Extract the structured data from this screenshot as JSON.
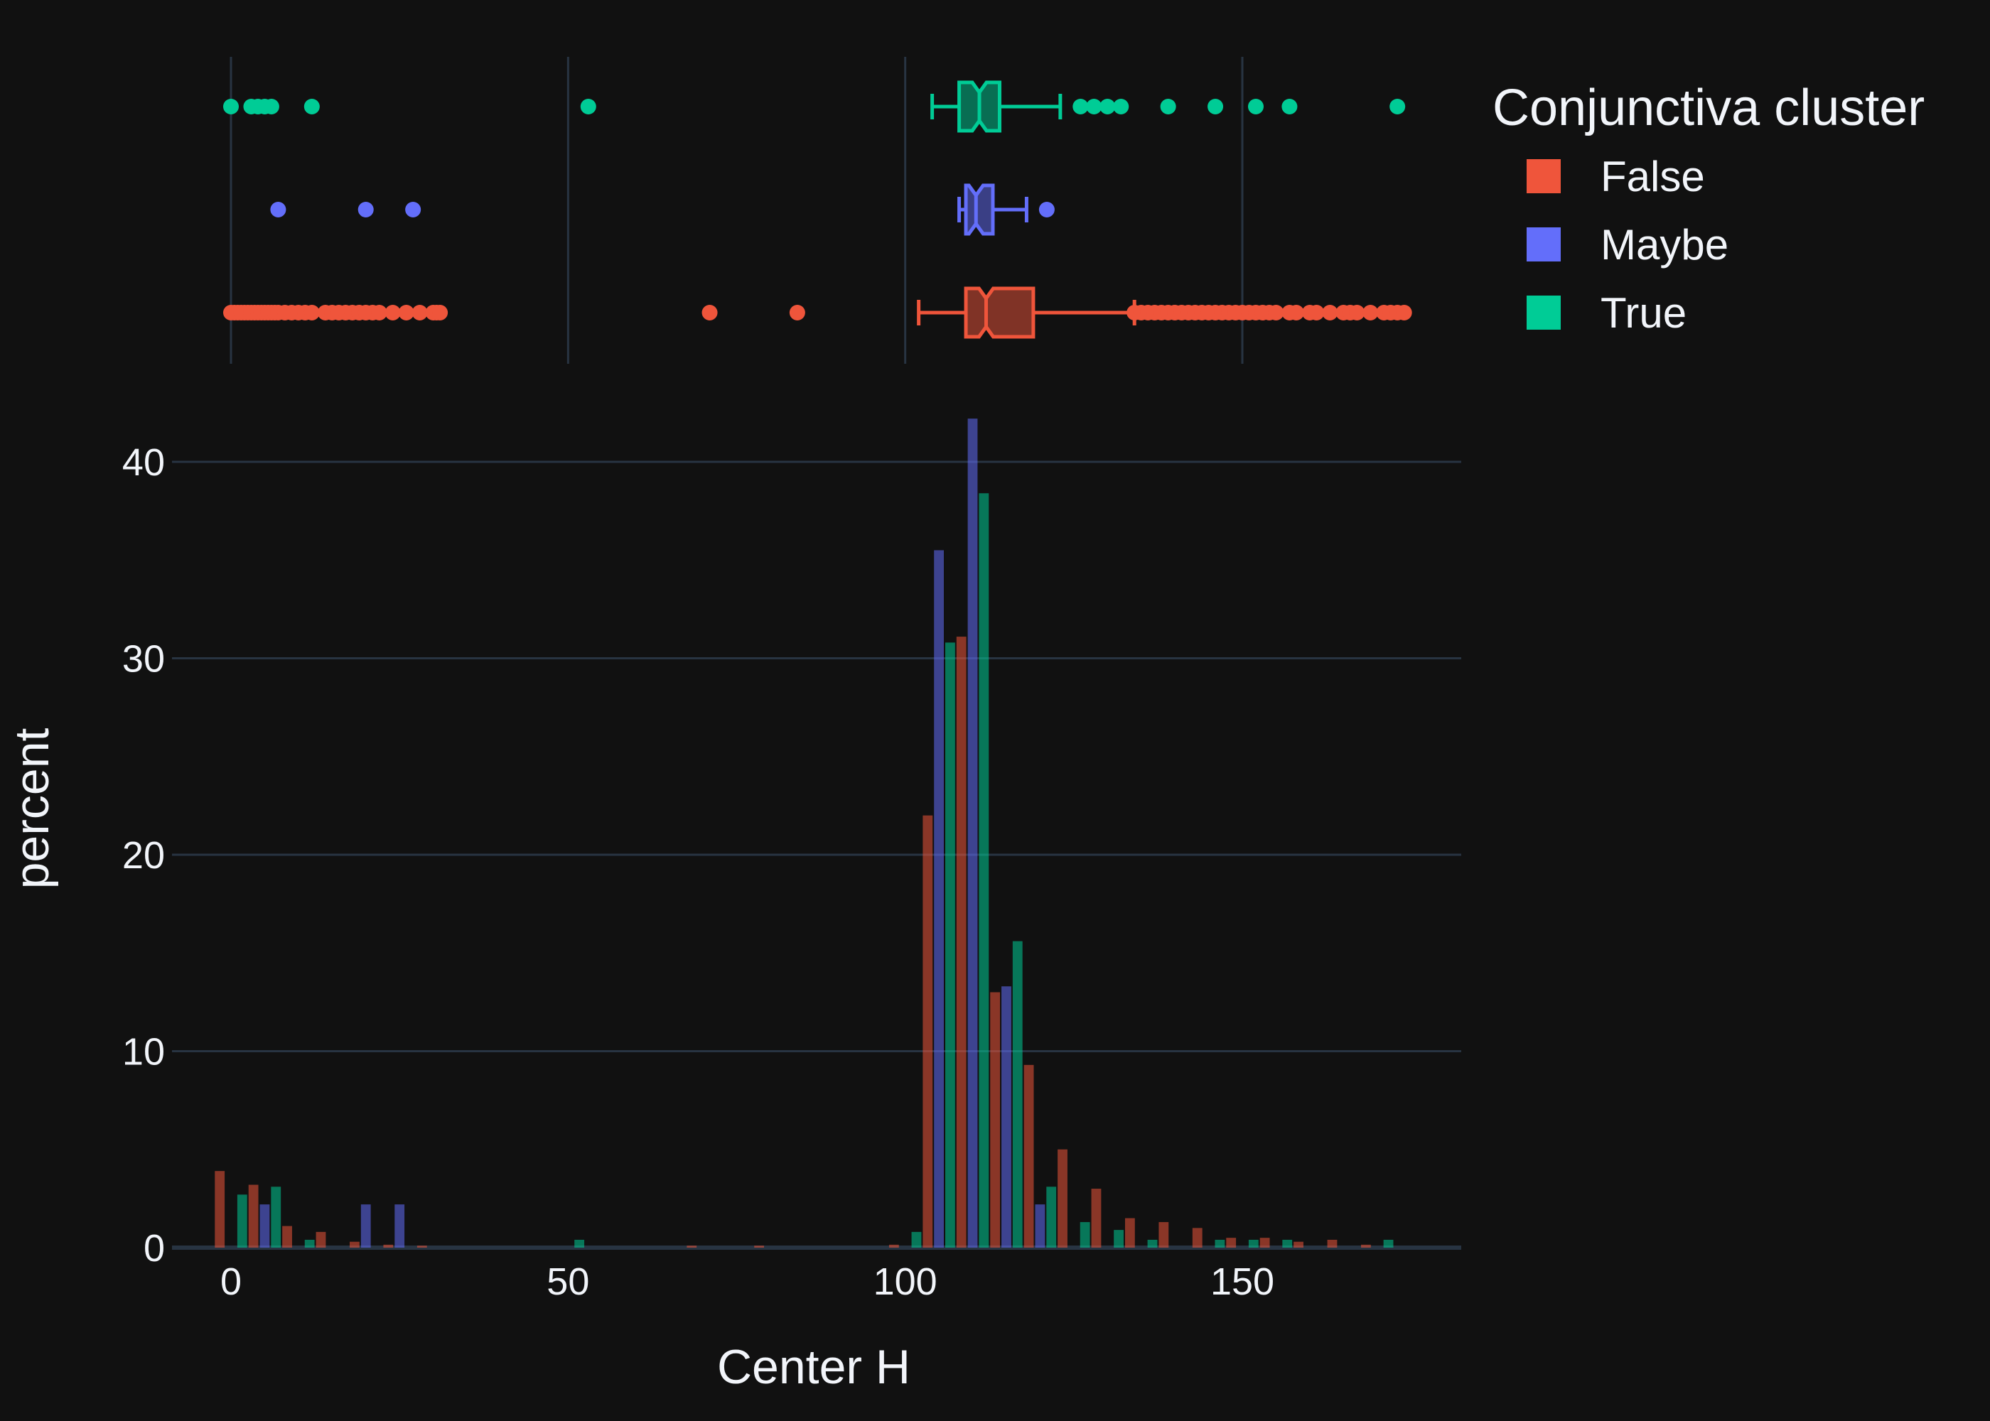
{
  "chart_data": {
    "type": "bar",
    "subtype": "histogram with marginal notched box plots",
    "xlabel": "Center H",
    "ylabel": "percent",
    "xlim": [
      -8,
      182
    ],
    "ylim": [
      0,
      44
    ],
    "x_ticks": [
      0,
      50,
      100,
      150
    ],
    "y_ticks": [
      0,
      10,
      20,
      30,
      40
    ],
    "grid": true,
    "legend": {
      "title": "Conjunctiva cluster",
      "position": "top-right"
    },
    "bin_width": 5,
    "series": [
      {
        "name": "False",
        "color": "#ef553b",
        "hist": [
          [
            0,
            3.9
          ],
          [
            5,
            3.2
          ],
          [
            10,
            1.1
          ],
          [
            15,
            0.8
          ],
          [
            20,
            0.3
          ],
          [
            25,
            0.15
          ],
          [
            30,
            0.1
          ],
          [
            70,
            0.1
          ],
          [
            80,
            0.1
          ],
          [
            100,
            0.15
          ],
          [
            105,
            22
          ],
          [
            110,
            31.1
          ],
          [
            115,
            13
          ],
          [
            120,
            9.3
          ],
          [
            125,
            5
          ],
          [
            130,
            3
          ],
          [
            135,
            1.5
          ],
          [
            140,
            1.3
          ],
          [
            145,
            1
          ],
          [
            150,
            0.5
          ],
          [
            155,
            0.5
          ],
          [
            160,
            0.3
          ],
          [
            165,
            0.4
          ],
          [
            170,
            0.15
          ]
        ],
        "box": {
          "lowerfence": 102,
          "q1": 109,
          "median": 112,
          "q3": 119,
          "upperfence": 134
        },
        "outliers": [
          0,
          0.5,
          1,
          1.5,
          2,
          2.5,
          3,
          3.5,
          4,
          4.5,
          5,
          5.5,
          6,
          6.5,
          7,
          8,
          9,
          10,
          11,
          12,
          14,
          15,
          16,
          17,
          18,
          19,
          20,
          21,
          22,
          24,
          26,
          28,
          30,
          30.5,
          31,
          71,
          84,
          134,
          135,
          136,
          137,
          138,
          139,
          140,
          141,
          142,
          143,
          144,
          145,
          146,
          147,
          148,
          149,
          150,
          151,
          152,
          153,
          154,
          155,
          157,
          158,
          160,
          161,
          163,
          165,
          166,
          167,
          169,
          171,
          172,
          173,
          174
        ]
      },
      {
        "name": "Maybe",
        "color": "#636efa",
        "hist": [
          [
            5,
            2.2
          ],
          [
            20,
            2.2
          ],
          [
            25,
            2.2
          ],
          [
            105,
            35.5
          ],
          [
            110,
            42.2
          ],
          [
            115,
            13.3
          ],
          [
            120,
            2.2
          ]
        ],
        "box": {
          "lowerfence": 108,
          "q1": 109,
          "median": 110.5,
          "q3": 113,
          "upperfence": 118
        },
        "outliers": [
          7,
          20,
          27,
          121
        ]
      },
      {
        "name": "True",
        "color": "#00cc96",
        "hist": [
          [
            0,
            2.7
          ],
          [
            5,
            3.1
          ],
          [
            10,
            0.4
          ],
          [
            50,
            0.4
          ],
          [
            100,
            0.8
          ],
          [
            105,
            30.8
          ],
          [
            110,
            38.4
          ],
          [
            115,
            15.6
          ],
          [
            120,
            3.1
          ],
          [
            125,
            1.3
          ],
          [
            130,
            0.9
          ],
          [
            135,
            0.4
          ],
          [
            145,
            0.4
          ],
          [
            150,
            0.4
          ],
          [
            155,
            0.4
          ],
          [
            170,
            0.4
          ]
        ],
        "box": {
          "lowerfence": 104,
          "q1": 108,
          "median": 111,
          "q3": 114,
          "upperfence": 123
        },
        "outliers": [
          0,
          3,
          4,
          5,
          6,
          12,
          53,
          126,
          128,
          130,
          132,
          139,
          146,
          152,
          157,
          173
        ]
      }
    ]
  }
}
